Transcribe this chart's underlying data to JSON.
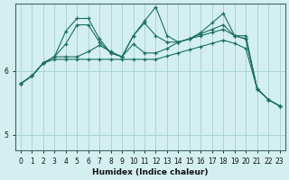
{
  "title": "",
  "xlabel": "Humidex (Indice chaleur)",
  "background_color": "#d4efef",
  "grid_color": "#aad4d4",
  "line_color": "#1a6e62",
  "x_ticks": [
    0,
    1,
    2,
    3,
    4,
    5,
    6,
    7,
    8,
    9,
    10,
    11,
    12,
    13,
    14,
    15,
    16,
    17,
    18,
    19,
    20,
    21,
    22,
    23
  ],
  "ylim": [
    4.75,
    7.05
  ],
  "yticks": [
    5,
    6
  ],
  "line1_y": [
    5.8,
    5.92,
    6.12,
    6.18,
    6.18,
    6.18,
    6.18,
    6.18,
    6.18,
    6.18,
    6.18,
    6.18,
    6.18,
    6.23,
    6.28,
    6.33,
    6.38,
    6.43,
    6.48,
    6.43,
    6.35,
    5.72,
    5.55,
    5.45
  ],
  "line2_y": [
    5.8,
    5.92,
    6.12,
    6.22,
    6.42,
    6.72,
    6.72,
    6.45,
    6.28,
    6.22,
    6.42,
    6.28,
    6.28,
    6.35,
    6.45,
    6.5,
    6.55,
    6.6,
    6.65,
    6.55,
    6.5,
    5.72,
    5.55,
    5.45
  ],
  "line3_y": [
    5.8,
    5.92,
    6.12,
    6.22,
    6.62,
    6.82,
    6.82,
    6.5,
    6.28,
    6.22,
    6.55,
    6.75,
    6.55,
    6.45,
    6.45,
    6.5,
    6.6,
    6.75,
    6.9,
    6.55,
    6.55,
    5.72,
    5.55,
    5.45
  ],
  "line4_y": [
    5.8,
    5.92,
    6.12,
    6.22,
    6.22,
    6.22,
    6.3,
    6.4,
    6.3,
    6.22,
    6.55,
    6.78,
    7.0,
    6.55,
    6.45,
    6.5,
    6.58,
    6.65,
    6.72,
    6.55,
    6.5,
    5.72,
    5.55,
    5.45
  ]
}
